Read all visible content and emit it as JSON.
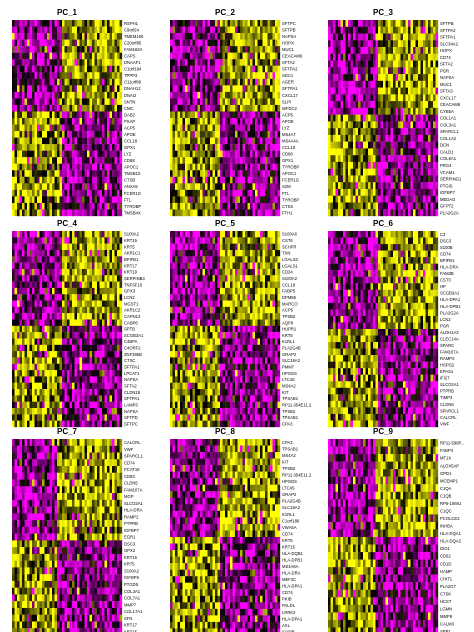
{
  "chart_data": {
    "type": "heatmap",
    "colors": {
      "low": "#ff00ff",
      "mid": "#000000",
      "high": "#ffff00"
    },
    "panels": [
      {
        "title": "PC_1",
        "genes": [
          "RSPH1",
          "C9orf24",
          "TMEM190",
          "C20orf85",
          "FAM183A",
          "CAPS",
          "DNAAF1",
          "C1orf194",
          "TPPP3",
          "C11orf88",
          "DNAH12",
          "DNAI2",
          "SNTN",
          "CMC",
          "DAB2",
          "PSAP",
          "ACP5",
          "APOE",
          "CCL18",
          "GPX1",
          "LYZ",
          "CD68",
          "APOC1",
          "TMSB10",
          "CTSB",
          "ANXA5",
          "FCER1G",
          "FTL",
          "TYROBP",
          "TMSB4X"
        ],
        "split": 14,
        "left_frac": 0.46
      },
      {
        "title": "PC_2",
        "genes": [
          "SFTPC",
          "SFTPB",
          "NAPSA",
          "HOPX",
          "MUC1",
          "CEACAM6",
          "SFTA2",
          "SFTPA2",
          "SDC1",
          "AGER",
          "SFTPA1",
          "CXCL17",
          "SLPI",
          "WFDC2",
          "ACP5",
          "APOE",
          "LYZ",
          "MS4A7",
          "MS4A4A",
          "CCL18",
          "CD68",
          "GPX1",
          "TYROBP",
          "APOC1",
          "FCER1G",
          "S2M",
          "FTL",
          "TYROBP",
          "CTSS",
          "FTH1"
        ],
        "split": 14,
        "left_frac": 0.46
      },
      {
        "title": "PC_3",
        "genes": [
          "SFTPB",
          "SFTPA2",
          "SFTPA1",
          "SLC34A2",
          "HOPX",
          "CD74",
          "SFTA2",
          "PGR",
          "NAPSA",
          "MUC1",
          "SFTA3",
          "CXCL17",
          "CEACAM6",
          "CYB5A",
          "COL1A1",
          "COL3A1",
          "SPARCL1",
          "COL1A2",
          "DCN",
          "CALD1",
          "COL6A1",
          "PRG4",
          "VCAM1",
          "SERPING1",
          "PTGIS",
          "IGFBP7",
          "MEDAG",
          "GFPT2",
          "PLA2G2A"
        ],
        "split": 14,
        "left_frac": 0.46
      },
      {
        "title": "PC_4",
        "genes": [
          "S100A2",
          "KRT15",
          "KRT5",
          "AKR1C1",
          "BPIFB1",
          "KRT17",
          "KRT19",
          "SERPINB3",
          "TNFSF10",
          "GPX3",
          "LCN2",
          "MGST1",
          "AKR1C2",
          "CAPN13",
          "CABP6",
          "SPTB",
          "SCGB3A1",
          "C4BPA",
          "C4ORF2",
          "ZNF385B",
          "CTSC",
          "SFTPA1",
          "LPCAT1",
          "NAPSA",
          "SFTA2",
          "CLDN18",
          "SFTPA1",
          "LAMP3",
          "NAPSA",
          "SFTPD",
          "SFTPC"
        ],
        "split": 15,
        "left_frac": 0.46
      },
      {
        "title": "PC_5",
        "genes": [
          "S100A6",
          "CST6",
          "SCHFR",
          "TXN",
          "LGALS3",
          "LGALS1",
          "CD24",
          "S100A2",
          "CCL18",
          "FABP5",
          "DPM86",
          "MARCO",
          "ACP5",
          "TPSB2",
          "AQP9",
          "HUPR1",
          "KRT8",
          "K1RL1",
          "PLA2G4B",
          "GRAP2",
          "SLC18A2",
          "PMM7",
          "HPGDS",
          "LTC4S",
          "MS4A2",
          "KIT",
          "TPSAB1",
          "RP11-354E11.2",
          "TPSB2",
          "TPSAB1",
          "CPA3"
        ],
        "split": 15,
        "left_frac": 0.46
      },
      {
        "title": "PC_6",
        "genes": [
          "C3",
          "DSC3",
          "S100B",
          "CD74",
          "BPIFB1",
          "HLA-DRA",
          "FAM3B",
          "CST3",
          "HP",
          "SCGB3A1",
          "HLA-DPA1",
          "HLA-DPB1",
          "PLA2G2A",
          "LCN2",
          "PGR",
          "ALDH1A3",
          "CLEC14A",
          "SPARC",
          "FAM107A",
          "RAMP2",
          "HSPG2",
          "EPAS1",
          "IFI27",
          "SLCO2A1",
          "PTPRB",
          "TIMP3",
          "CLDN5",
          "SPARCL1",
          "CALCRL",
          "VWF"
        ],
        "split": 15,
        "left_frac": 0.46
      },
      {
        "title": "PC_7",
        "genes": [
          "CALCRL",
          "VWF",
          "SPARCL1",
          "CD74",
          "PCAT19",
          "CD93",
          "CLDN5",
          "FAM107A",
          "MGP",
          "SLCO2A1",
          "HLA-DRA",
          "RAMP2",
          "PTPRB",
          "IGFBP7",
          "EGR1",
          "DSC3",
          "GPX2",
          "KRT15",
          "KRT5",
          "S100A2",
          "IGFBP6",
          "PTGDS",
          "COL3A1",
          "COL7A1",
          "MMP7",
          "COL17A1",
          "SFN",
          "KRT17",
          "KRT15"
        ],
        "split": 15,
        "left_frac": 0.4
      },
      {
        "title": "PC_8",
        "genes": [
          "CPA3",
          "TPSAB1",
          "MS4A2",
          "KIT",
          "TPSB2",
          "RP11-354E11.2",
          "HPGDS",
          "LTC4S",
          "GRAP2",
          "PLA2G4B",
          "SLC18A2",
          "K1RL1",
          "C1orf186",
          "VWA5A",
          "CD74",
          "KRT5",
          "KRT15",
          "HLA-DQB1",
          "HLA-DPB1",
          "MS4A6A",
          "HLA-DRA",
          "MEF2C",
          "HLA-DPA1",
          "CD74",
          "PKIB",
          "PALD1",
          "LRRK2",
          "HLA-DPA1",
          "AXL",
          "S100B"
        ],
        "split": 15,
        "left_frac": 0.46
      },
      {
        "title": "PC_9",
        "genes": [
          "RP11-598P...",
          "FABP4",
          "MT1X",
          "ALOX5AP",
          "GPD1",
          "MCEMP1",
          "C1QA",
          "C1QB",
          "RP5-1069J",
          "C1QC",
          "PCOLCE2",
          "INHBA",
          "HLA-DQA1",
          "HLA-DQA2",
          "DIO1",
          "CD52",
          "CD1D",
          "HAMP",
          "CHIT1",
          "PLA2G7",
          "CTSK",
          "HCST",
          "LGMN",
          "MMP9",
          "CALM3",
          "SPP1"
        ],
        "split": 13,
        "left_frac": 0.44
      }
    ]
  }
}
